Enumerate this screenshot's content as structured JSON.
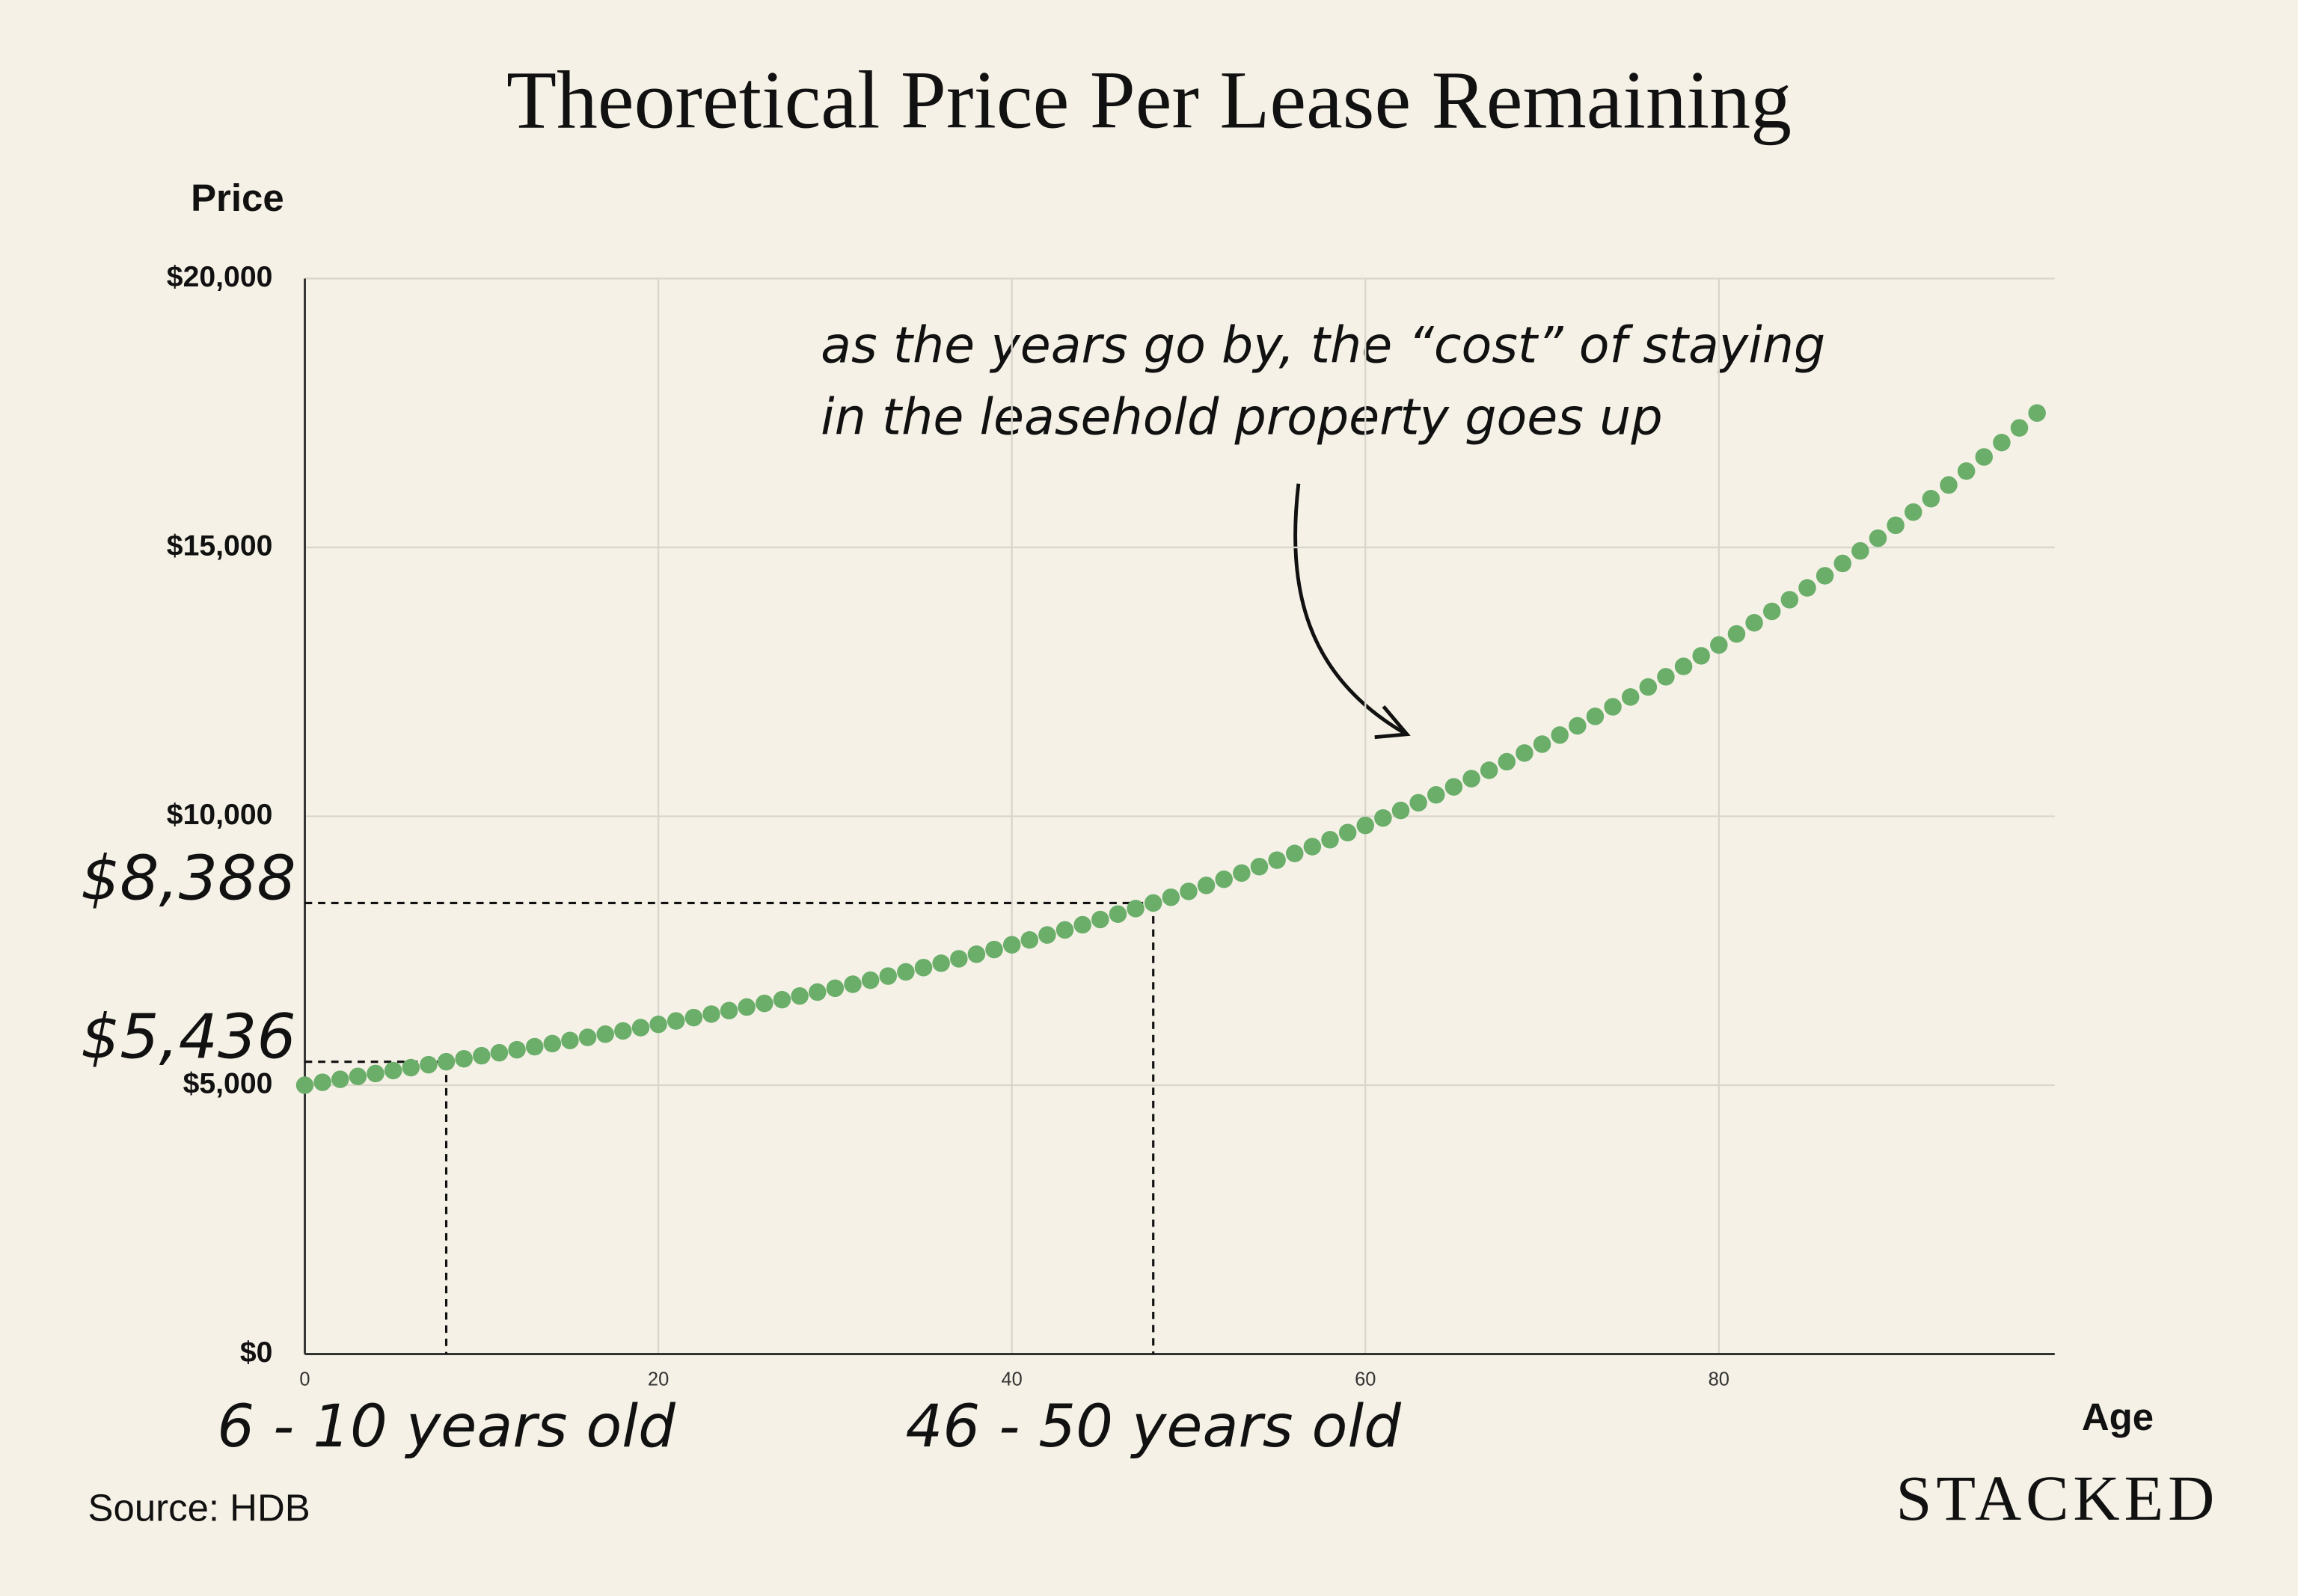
{
  "chart_data": {
    "type": "scatter",
    "title": "Theoretical Price Per Lease Remaining",
    "y_label": "Price",
    "x_label": "Age",
    "source": "Source: HDB",
    "brand": "STACKED",
    "annotation": [
      "as the years go by, the “cost” of staying",
      "in the leasehold property goes up"
    ],
    "color": "#6aae6a",
    "x": [
      0,
      1,
      2,
      3,
      4,
      5,
      6,
      7,
      8,
      9,
      10,
      11,
      12,
      13,
      14,
      15,
      16,
      17,
      18,
      19,
      20,
      21,
      22,
      23,
      24,
      25,
      26,
      27,
      28,
      29,
      30,
      31,
      32,
      33,
      34,
      35,
      36,
      37,
      38,
      39,
      40,
      41,
      42,
      43,
      44,
      45,
      46,
      47,
      48,
      49,
      50,
      51,
      52,
      53,
      54,
      55,
      56,
      57,
      58,
      59,
      60,
      61,
      62,
      63,
      64,
      65,
      66,
      67,
      68,
      69,
      70,
      71,
      72,
      73,
      74,
      75,
      76,
      77,
      78,
      79,
      80,
      81,
      82,
      83,
      84,
      85,
      86,
      87,
      88,
      89,
      90,
      91,
      92,
      93,
      94,
      95,
      96,
      97,
      98
    ],
    "values": [
      5000,
      5054,
      5109,
      5163,
      5217,
      5272,
      5326,
      5381,
      5436,
      5491,
      5547,
      5603,
      5659,
      5716,
      5773,
      5831,
      5890,
      5949,
      6009,
      6070,
      6131,
      6194,
      6257,
      6322,
      6387,
      6453,
      6521,
      6590,
      6659,
      6731,
      6803,
      6877,
      6952,
      7029,
      7107,
      7187,
      7268,
      7351,
      7436,
      7523,
      7611,
      7701,
      7793,
      7887,
      7983,
      8081,
      8181,
      8284,
      8388,
      8495,
      8604,
      8715,
      8829,
      8945,
      9064,
      9185,
      9309,
      9436,
      9565,
      9697,
      9831,
      9969,
      10109,
      10252,
      10399,
      10548,
      10701,
      10856,
      11015,
      11177,
      11342,
      11511,
      11683,
      11858,
      12037,
      12219,
      12405,
      12595,
      12788,
      12985,
      13186,
      13391,
      13599,
      13811,
      14028,
      14248,
      14473,
      14702,
      14935,
      15172,
      15412,
      15657,
      15907,
      16161,
      16420,
      16683,
      16951,
      17223,
      17500
    ],
    "xlim": [
      0,
      99
    ],
    "xticks": [
      0,
      20,
      40,
      60,
      80
    ],
    "ylim": [
      0,
      20000
    ],
    "yticks": [
      {
        "value": 0,
        "label": "$0"
      },
      {
        "value": 5000,
        "label": "$5,000"
      },
      {
        "value": 10000,
        "label": "$10,000"
      },
      {
        "value": 15000,
        "label": "$15,000"
      },
      {
        "value": 20000,
        "label": "$20,000"
      }
    ],
    "grid": true,
    "markers": [
      {
        "x": 8,
        "y": 5436,
        "label": "$5,436",
        "range": "6 - 10 years old"
      },
      {
        "x": 48,
        "y": 8388,
        "label": "$8,388",
        "range": "46 - 50 years old"
      }
    ]
  }
}
